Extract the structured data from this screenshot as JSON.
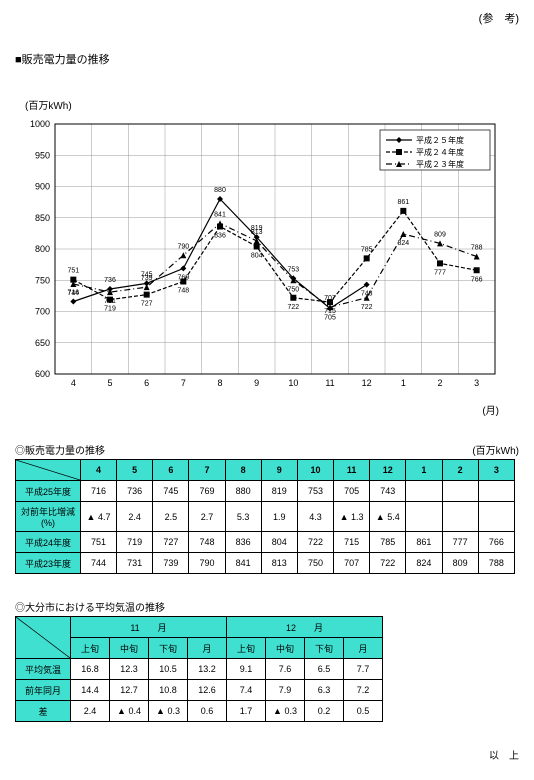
{
  "header_ref": "(参　考)",
  "main_title": "■販売電力量の推移",
  "chart": {
    "y_unit": "(百万kWh)",
    "x_unit": "(月)",
    "ylim": [
      600,
      1000
    ],
    "ytick_step": 50,
    "x_categories": [
      "4",
      "5",
      "6",
      "7",
      "8",
      "9",
      "10",
      "11",
      "12",
      "1",
      "2",
      "3"
    ],
    "title_fontsize": 11,
    "legend": {
      "items": [
        {
          "label": "平成２５年度",
          "style": "h25"
        },
        {
          "label": "平成２４年度",
          "style": "h24"
        },
        {
          "label": "平成２３年度",
          "style": "h23"
        }
      ]
    },
    "series": {
      "h25": {
        "color": "#000",
        "values": [
          716,
          736,
          745,
          769,
          880,
          819,
          753,
          705,
          743,
          null,
          null,
          null
        ],
        "marker": "diamond",
        "dash": "none",
        "labels": [
          "716",
          "736",
          "745",
          "769",
          "880",
          "819",
          "753",
          "705",
          "743",
          "",
          "",
          ""
        ],
        "label_dy": [
          -7,
          -7,
          -7,
          11,
          -7,
          -7,
          -7,
          11,
          11,
          0,
          0,
          0
        ]
      },
      "h24": {
        "color": "#000",
        "values": [
          751,
          719,
          727,
          748,
          836,
          804,
          722,
          715,
          785,
          861,
          777,
          766
        ],
        "marker": "square",
        "dash": "4 2",
        "labels": [
          "751",
          "719",
          "727",
          "748",
          "836",
          "804",
          "722",
          "715",
          "785",
          "861",
          "777",
          "766"
        ],
        "label_dy": [
          -7,
          11,
          11,
          11,
          11,
          11,
          11,
          11,
          -7,
          -7,
          11,
          11
        ]
      },
      "h23": {
        "color": "#000",
        "values": [
          744,
          731,
          739,
          790,
          841,
          813,
          750,
          707,
          722,
          824,
          809,
          788
        ],
        "marker": "triangle",
        "dash": "6 3 1 3",
        "labels": [
          "744",
          "731",
          "739",
          "790",
          "841",
          "813",
          "750",
          "707",
          "722",
          "824",
          "809",
          "788"
        ],
        "label_dy": [
          11,
          11,
          -7,
          -7,
          -7,
          -7,
          11,
          -7,
          11,
          11,
          -7,
          -7
        ]
      }
    }
  },
  "table1": {
    "title": "◎販売電力量の推移",
    "unit": "(百万kWh)",
    "columns": [
      "4",
      "5",
      "6",
      "7",
      "8",
      "9",
      "10",
      "11",
      "12",
      "1",
      "2",
      "3"
    ],
    "rows": [
      {
        "label": "平成25年度",
        "cells": [
          "716",
          "736",
          "745",
          "769",
          "880",
          "819",
          "753",
          "705",
          "743",
          "",
          "",
          ""
        ]
      },
      {
        "label": "対前年比増減(%)",
        "cells": [
          "▲ 4.7",
          "2.4",
          "2.5",
          "2.7",
          "5.3",
          "1.9",
          "4.3",
          "▲ 1.3",
          "▲ 5.4",
          "",
          "",
          ""
        ]
      },
      {
        "label": "平成24年度",
        "cells": [
          "751",
          "719",
          "727",
          "748",
          "836",
          "804",
          "722",
          "715",
          "785",
          "861",
          "777",
          "766"
        ]
      },
      {
        "label": "平成23年度",
        "cells": [
          "744",
          "731",
          "739",
          "790",
          "841",
          "813",
          "750",
          "707",
          "722",
          "824",
          "809",
          "788"
        ]
      }
    ]
  },
  "table2": {
    "title": "◎大分市における平均気温の推移",
    "month_groups": [
      {
        "label": "11　　月",
        "periods": [
          "上旬",
          "中旬",
          "下旬",
          "月"
        ]
      },
      {
        "label": "12　　月",
        "periods": [
          "上旬",
          "中旬",
          "下旬",
          "月"
        ]
      }
    ],
    "rows": [
      {
        "label": "平均気温",
        "cells": [
          "16.8",
          "12.3",
          "10.5",
          "13.2",
          "9.1",
          "7.6",
          "6.5",
          "7.7"
        ]
      },
      {
        "label": "前年同月",
        "cells": [
          "14.4",
          "12.7",
          "10.8",
          "12.6",
          "7.4",
          "7.9",
          "6.3",
          "7.2"
        ]
      },
      {
        "label": "差",
        "cells": [
          "2.4",
          "▲ 0.4",
          "▲ 0.3",
          "0.6",
          "1.7",
          "▲ 0.3",
          "0.2",
          "0.5"
        ]
      }
    ]
  },
  "footer": "以　上"
}
